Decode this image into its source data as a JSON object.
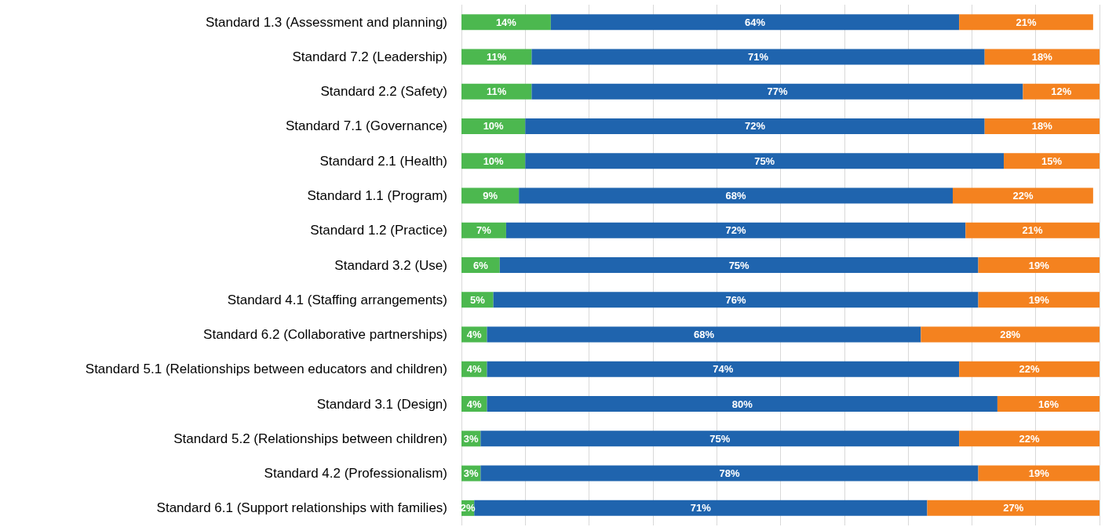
{
  "chart_data": {
    "type": "bar",
    "orientation": "horizontal",
    "stacked": true,
    "grid": "x",
    "tick_labels": "y",
    "categories": [
      "Standard 1.3 (Assessment and planning)",
      "Standard 7.2 (Leadership)",
      "Standard 2.2 (Safety)",
      "Standard 7.1 (Governance)",
      "Standard 2.1 (Health)",
      "Standard 1.1 (Program)",
      "Standard 1.2 (Practice)",
      "Standard 3.2 (Use)",
      "Standard 4.1 (Staffing arrangements)",
      "Standard 6.2 (Collaborative partnerships)",
      "Standard 5.1 (Relationships between educators and children)",
      "Standard 3.1 (Design)",
      "Standard 5.2 (Relationships between children)",
      "Standard 4.2 (Professionalism)",
      "Standard 6.1 (Support relationships with families)"
    ],
    "xlim": [
      0,
      100
    ],
    "xticks": [
      {
        "value": 0,
        "label": null
      },
      {
        "value": 10,
        "label": null
      },
      {
        "value": 20,
        "label": null
      },
      {
        "value": 30,
        "label": null
      },
      {
        "value": 40,
        "label": null
      },
      {
        "value": 50,
        "label": null
      },
      {
        "value": 60,
        "label": null
      },
      {
        "value": 70,
        "label": null
      },
      {
        "value": 80,
        "label": null
      },
      {
        "value": 90,
        "label": null
      },
      {
        "value": 100,
        "label": null
      }
    ],
    "series": [
      {
        "color": "#4cb84f",
        "values": [
          14,
          11,
          11,
          10,
          10,
          9,
          7,
          6,
          5,
          4,
          4,
          4,
          3,
          3,
          2
        ],
        "value_labels": [
          "14%",
          "11%",
          "11%",
          "10%",
          "10%",
          "9%",
          "7%",
          "6%",
          "5%",
          "4%",
          "4%",
          "4%",
          "3%",
          "3%",
          "2%"
        ]
      },
      {
        "color": "#1f64ae",
        "values": [
          64,
          71,
          77,
          72,
          75,
          68,
          72,
          75,
          76,
          68,
          74,
          80,
          75,
          78,
          71
        ],
        "value_labels": [
          "64%",
          "71%",
          "77%",
          "72%",
          "75%",
          "68%",
          "72%",
          "75%",
          "76%",
          "68%",
          "74%",
          "80%",
          "75%",
          "78%",
          "71%"
        ]
      },
      {
        "color": "#f4821f",
        "values": [
          21,
          18,
          12,
          18,
          15,
          22,
          21,
          19,
          19,
          28,
          22,
          16,
          22,
          19,
          27
        ],
        "value_labels": [
          "21%",
          "18%",
          "12%",
          "18%",
          "15%",
          "22%",
          "21%",
          "19%",
          "19%",
          "28%",
          "22%",
          "16%",
          "22%",
          "19%",
          "27%"
        ]
      }
    ]
  }
}
